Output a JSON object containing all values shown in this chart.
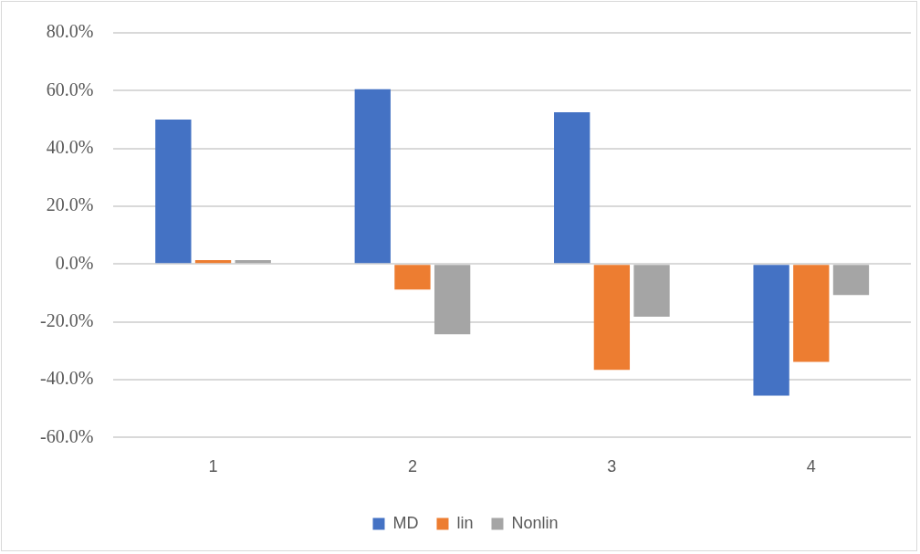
{
  "chart_data": {
    "type": "bar",
    "categories": [
      "1",
      "2",
      "3",
      "4"
    ],
    "series": [
      {
        "name": "MD",
        "color": "#4472c4",
        "values": [
          50.0,
          60.5,
          52.5,
          -45.5
        ]
      },
      {
        "name": "lin",
        "color": "#ed7d31",
        "values": [
          1.4,
          -8.8,
          -36.6,
          -33.8
        ]
      },
      {
        "name": "Nonlin",
        "color": "#a5a5a5",
        "values": [
          1.4,
          -24.3,
          -18.2,
          -10.7
        ]
      }
    ],
    "ylim": [
      -60,
      80
    ],
    "yticks": [
      {
        "value": -60,
        "label": "-60.0%"
      },
      {
        "value": -40,
        "label": "-40.0%"
      },
      {
        "value": -20,
        "label": "-20.0%"
      },
      {
        "value": 0,
        "label": "0.0%"
      },
      {
        "value": 20,
        "label": "20.0%"
      },
      {
        "value": 40,
        "label": "40.0%"
      },
      {
        "value": 60,
        "label": "60.0%"
      },
      {
        "value": 80,
        "label": "80.0%"
      }
    ],
    "grid": "y",
    "legend": "bottom"
  }
}
